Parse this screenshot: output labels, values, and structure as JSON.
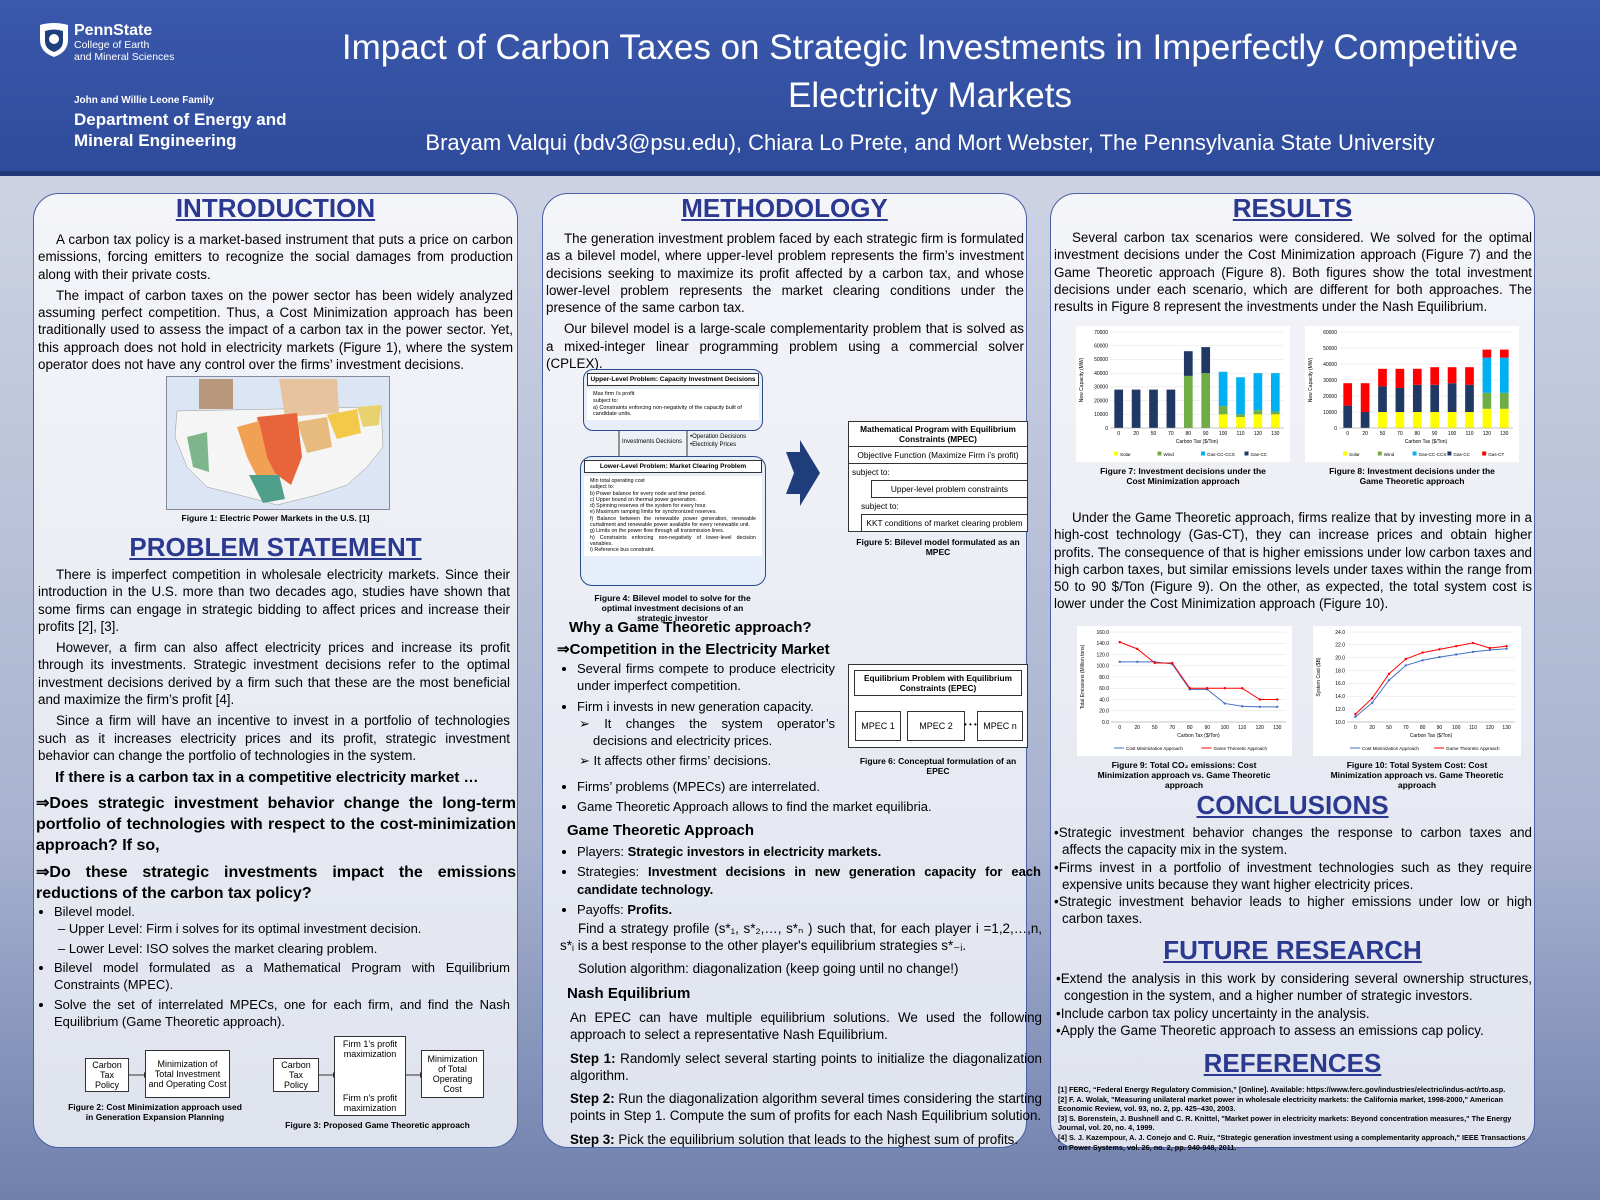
{
  "header": {
    "logo_name": "PennState",
    "logo_line1": "College of Earth",
    "logo_line2": "and Mineral Sciences",
    "dept_family": "John and Willie Leone Family",
    "dept_line1": "Department of Energy and",
    "dept_line2": "Mineral Engineering",
    "title": "Impact of Carbon Taxes on Strategic Investments in Imperfectly Competitive Electricity Markets",
    "authors": "Brayam Valqui (bdv3@psu.edu), Chiara Lo Prete, and Mort Webster, The Pennsylvania State University"
  },
  "introduction": {
    "heading": "INTRODUCTION",
    "paragraphs": [
      "A carbon tax policy is a market-based instrument that puts a price on carbon emissions, forcing emitters to recognize the social damages from production along with their private costs.",
      "The impact of carbon taxes on the power sector has been widely analyzed assuming perfect competition. Thus, a Cost Minimization approach has been traditionally used to assess the impact of a carbon tax in the power sector. Yet, this approach does not hold in electricity markets (Figure 1), where the system operator does not have any control over the firms’ investment decisions."
    ],
    "figure1_caption": "Figure 1: Electric Power Markets in the U.S. [1]"
  },
  "problem_statement": {
    "heading": "PROBLEM STATEMENT",
    "paragraphs": [
      "There is imperfect competition in wholesale electricity markets. Since their introduction in the U.S. more than two decades ago, studies have shown that some firms can engage in strategic bidding to affect prices and increase their profits [2], [3].",
      "However, a firm can also affect electricity prices and increase its profit through its investments. Strategic investment decisions refer to the optimal investment decisions derived by a firm such that these are the most beneficial and maximize the firm’s profit [4].",
      "Since a firm will have an incentive to invest in a portfolio of technologies such as it increases electricity prices and its profit, strategic investment behavior can change the portfolio of technologies in the system."
    ],
    "question_intro": "If there is a carbon tax in a competitive electricity market …",
    "questions": [
      "⇒Does strategic investment behavior change the long-term portfolio of technologies with respect to the cost-minimization approach? If so,",
      "⇒Do these strategic investments impact the emissions reductions of the carbon tax policy?"
    ],
    "bullets": [
      {
        "text": "Bilevel model.",
        "subitems": [
          "Upper Level: Firm i solves for its optimal investment decision.",
          "Lower Level: ISO solves the market clearing problem."
        ]
      },
      {
        "text": "Bilevel model formulated as a Mathematical Program with Equilibrium Constraints (MPEC)."
      },
      {
        "text": "Solve the set of interrelated MPECs, one for each firm, and find the Nash Equilibrium (Game Theoretic approach)."
      }
    ],
    "figure2": {
      "input": "Carbon Tax Policy",
      "model": "Minimization of Total Investment and Operating Cost",
      "caption": "Figure 2: Cost Minimization approach used in Generation Expansion Planning"
    },
    "figure3": {
      "input": "Carbon Tax Policy",
      "firm_first": "Firm 1’s profit maximization",
      "firm_last": "Firm n’s profit maximization",
      "model": "Minimization of Total Operating Cost",
      "caption": "Figure 3: Proposed Game Theoretic approach"
    }
  },
  "methodology": {
    "heading": "METHODOLOGY",
    "paragraphs": [
      "The generation investment problem faced by each strategic firm is formulated as a bilevel model, where upper-level problem represents the firm’s investment decisions seeking to maximize its profit affected by a carbon tax, and whose lower-level problem represents the market clearing conditions under the presence of the same carbon tax.",
      "Our bilevel model is a large-scale complementarity problem that is solved as a mixed-integer linear programming problem using a commercial solver (CPLEX)."
    ],
    "figure4": {
      "upper_title": "Upper-Level Problem: Capacity Investment Decisions",
      "upper_lines": [
        "Max firm i’s profit",
        "subject to:",
        "a) Constraints enforcing non-negativity of the capacity built of candidate units."
      ],
      "down_label": "Investments Decisions",
      "up_labels": [
        "•Operation Decisions",
        "•Electricity Prices"
      ],
      "lower_title": "Lower-Level Problem: Market Clearing Problem",
      "lower_lines": [
        "Min total operating cost",
        "subject to:",
        "b) Power balance for every node and time period.",
        "c) Upper bound on thermal power generation.",
        "d) Spinning reserves of the system for every hour.",
        "e) Maximum ramping limits for synchronized reserves.",
        "f) Balance between the renewable power generation, renewable curtailment and renewable power available for every renewable unit.",
        "g) Limits on the power flow through all transmission lines.",
        "h) Constraints enforcing non-negativity of lower-level decision variables.",
        "i) Reference bus constraint."
      ],
      "caption": "Figure 4: Bilevel model to solve for the optimal investment decisions of an strategic investor"
    },
    "figure5": {
      "title": "Mathematical Program with Equilibrium Constraints (MPEC)",
      "objective": "Objective Function (Maximize Firm i’s profit)",
      "subject_to_1": "subject to:",
      "upper_constraints": "Upper-level problem constraints",
      "subject_to_2": "subject to:",
      "kkt": "KKT conditions of market clearing problem",
      "caption": "Figure 5: Bilevel model formulated as an MPEC"
    },
    "why_heading": "Why a Game Theoretic approach?",
    "competition_heading": "⇒Competition in the Electricity Market",
    "competition_bullets": [
      {
        "text": "Several firms compete to produce electricity under imperfect competition."
      },
      {
        "text": "Firm i invests in new generation capacity.",
        "subitems": [
          "It changes the system operator’s decisions and electricity prices.",
          "It affects other firms’ decisions."
        ]
      },
      {
        "text": "Firms’ problems (MPECs) are interrelated."
      },
      {
        "text": "Game Theoretic Approach allows to find the market equilibria."
      }
    ],
    "figure6": {
      "title": "Equilibrium Problem with Equilibrium Constraints (EPEC)",
      "boxes": [
        "MPEC 1",
        "MPEC 2",
        "MPEC n"
      ],
      "ellipsis": "• • •",
      "caption": "Figure 6: Conceptual formulation of an EPEC"
    },
    "game_heading": "Game Theoretic Approach",
    "game_items": [
      {
        "label": "Players:",
        "value": "Strategic investors in electricity markets."
      },
      {
        "label": "Strategies:",
        "value": "Investment decisions in new generation capacity for each candidate technology."
      },
      {
        "label": "Payoffs:",
        "value": "Profits."
      }
    ],
    "strategy_profile": "Find a strategy profile (s*₁, s*₂,…, s*ₙ ) such that, for each player i =1,2,…,n, s*ᵢ is a best response to the other player's equilibrium strategies s*₋ᵢ.",
    "solution_algorithm": "Solution algorithm: diagonalization (keep going until no change!)",
    "nash_heading": "Nash Equilibrium",
    "nash_intro": "An EPEC can have multiple equilibrium solutions. We used the following approach to select a representative Nash Equilibrium.",
    "steps": [
      {
        "label": "Step 1:",
        "text": "Randomly select several starting points to initialize the diagonalization algorithm."
      },
      {
        "label": "Step 2:",
        "text": "Run the diagonalization algorithm several times considering the starting points in Step 1. Compute the sum of profits for each Nash Equilibrium solution."
      },
      {
        "label": "Step 3:",
        "text": "Pick the equilibrium solution that leads to the highest sum of profits."
      }
    ]
  },
  "results": {
    "heading": "RESULTS",
    "paragraphs": [
      "Several carbon tax scenarios were considered. We solved for the optimal investment decisions under the Cost Minimization approach (Figure 7) and the Game Theoretic approach (Figure 8). Both figures show the total investment decisions under each scenario, which are different for both approaches. The results in Figure 8 represent the investments under the Nash Equilibrium.",
      "Under the Game Theoretic approach, firms realize that by investing more in a high-cost technology (Gas-CT), they can increase prices and obtain higher profits. The consequence of that is higher emissions under low carbon taxes and high carbon taxes, but similar emissions levels under taxes within the range from 50 to 90 $/Ton (Figure 9). On the other, as expected, the total system cost is lower under the Cost Minimization approach (Figure 10)."
    ],
    "figure7": {
      "chart": {
        "type": "bar",
        "ylabel": "New Capacity (MW)",
        "xlabel": "Carbon Tax ($/Ton)",
        "categories": [
          "0",
          "20",
          "50",
          "70",
          "80",
          "90",
          "100",
          "110",
          "120",
          "130"
        ],
        "ylim": [
          0,
          70000
        ],
        "yticks": [
          0,
          10000,
          20000,
          30000,
          40000,
          50000,
          60000,
          70000
        ],
        "series": [
          {
            "name": "Solar",
            "color": "#ffff00",
            "values": [
              0,
              0,
              0,
              0,
              0,
              0,
              10000,
              8000,
              10000,
              10000
            ]
          },
          {
            "name": "Wind",
            "color": "#70ad47",
            "values": [
              0,
              0,
              0,
              0,
              38000,
              40000,
              6000,
              2000,
              3000,
              2000
            ]
          },
          {
            "name": "Gas-CC-CCS",
            "color": "#00b0f0",
            "values": [
              0,
              0,
              0,
              0,
              0,
              0,
              25000,
              27000,
              27000,
              28000
            ]
          },
          {
            "name": "Gas-CC",
            "color": "#1f3864",
            "values": [
              28000,
              28000,
              28000,
              28000,
              18000,
              19000,
              0,
              0,
              0,
              0
            ]
          }
        ]
      },
      "caption": "Figure 7: Investment decisions under the Cost Minimization approach"
    },
    "figure8": {
      "chart": {
        "type": "bar",
        "ylabel": "New Capacity (MW)",
        "xlabel": "Carbon Tax ($/Ton)",
        "categories": [
          "0",
          "20",
          "50",
          "70",
          "80",
          "90",
          "100",
          "110",
          "120",
          "130"
        ],
        "ylim": [
          0,
          60000
        ],
        "yticks": [
          0,
          10000,
          20000,
          30000,
          40000,
          50000,
          60000
        ],
        "series": [
          {
            "name": "Solar",
            "color": "#ffff00",
            "values": [
              0,
              0,
              10000,
              10000,
              10000,
              10000,
              10000,
              10000,
              12000,
              12000
            ]
          },
          {
            "name": "Wind",
            "color": "#70ad47",
            "values": [
              0,
              0,
              0,
              0,
              0,
              0,
              0,
              0,
              10000,
              10000
            ]
          },
          {
            "name": "Gas-CC-CCS",
            "color": "#00b0f0",
            "values": [
              0,
              0,
              0,
              0,
              0,
              0,
              0,
              0,
              22000,
              22000
            ]
          },
          {
            "name": "Gas-CC",
            "color": "#1f3864",
            "values": [
              14000,
              10000,
              16000,
              15000,
              17000,
              17000,
              18000,
              17000,
              0,
              0
            ]
          },
          {
            "name": "Gas-CT",
            "color": "#ff0000",
            "values": [
              14000,
              18000,
              11000,
              12000,
              10000,
              11000,
              10000,
              11000,
              5000,
              5000
            ]
          }
        ]
      },
      "caption": "Figure 8: Investment decisions under the Game Theoretic approach"
    },
    "figure9": {
      "chart": {
        "type": "line",
        "ylabel": "Total Emissions (Million tons)",
        "xlabel": "Carbon Tax ($/Ton)",
        "categories": [
          "0",
          "20",
          "50",
          "70",
          "80",
          "90",
          "100",
          "110",
          "120",
          "130"
        ],
        "ylim": [
          0,
          160
        ],
        "yticks": [
          {
            "value": 0,
            "label": "0.0"
          },
          {
            "value": 20,
            "label": "20.0"
          },
          {
            "value": 40,
            "label": "40.0"
          },
          {
            "value": 60,
            "label": "60.0"
          },
          {
            "value": 80,
            "label": "80.0"
          },
          {
            "value": 100,
            "label": "100.0"
          },
          {
            "value": 120,
            "label": "120.0"
          },
          {
            "value": 140,
            "label": "140.0"
          },
          {
            "value": 160,
            "label": "160.0"
          }
        ],
        "series": [
          {
            "name": "Cost Minimization Approach",
            "color": "#4472c4",
            "values": [
              107,
              107,
              107,
              103,
              58,
              58,
              33,
              28,
              27,
              27
            ]
          },
          {
            "name": "Game Theoretic Approach",
            "color": "#ff0000",
            "values": [
              142,
              130,
              105,
              105,
              60,
              60,
              60,
              60,
              40,
              40
            ]
          }
        ]
      },
      "caption": "Figure 9: Total CO₂ emissions: Cost Minimization approach vs. Game Theoretic approach"
    },
    "figure10": {
      "chart": {
        "type": "line",
        "ylabel": "System Cost ($B)",
        "xlabel": "Carbon Tax ($/Ton)",
        "categories": [
          "0",
          "20",
          "50",
          "70",
          "80",
          "90",
          "100",
          "110",
          "120",
          "130"
        ],
        "ylim": [
          10,
          24
        ],
        "yticks": [
          {
            "value": 10,
            "label": "10.0"
          },
          {
            "value": 12,
            "label": "12.0"
          },
          {
            "value": 14,
            "label": "14.0"
          },
          {
            "value": 16,
            "label": "16.0"
          },
          {
            "value": 18,
            "label": "18.0"
          },
          {
            "value": 20,
            "label": "20.0"
          },
          {
            "value": 22,
            "label": "22.0"
          },
          {
            "value": 24,
            "label": "24.0"
          }
        ],
        "series": [
          {
            "name": "Cost Minimization Approach",
            "color": "#4472c4",
            "values": [
              10.8,
              13.0,
              16.5,
              18.8,
              19.6,
              20.1,
              20.5,
              20.9,
              21.2,
              21.4
            ]
          },
          {
            "name": "Game Theoretic Approach",
            "color": "#ff0000",
            "values": [
              11.2,
              13.7,
              17.5,
              19.8,
              20.8,
              21.3,
              21.8,
              22.3,
              21.5,
              21.8
            ]
          }
        ]
      },
      "caption": "Figure 10: Total System Cost: Cost Minimization approach vs. Game Theoretic approach"
    }
  },
  "conclusions": {
    "heading": "CONCLUSIONS",
    "bullets": [
      "Strategic investment behavior changes the response to carbon taxes and affects the capacity mix in the system.",
      "Firms invest in a portfolio of investment technologies such as they require expensive units because they want higher electricity prices.",
      "Strategic investment behavior leads to higher emissions under low or high carbon taxes."
    ]
  },
  "future_research": {
    "heading": "FUTURE RESEARCH",
    "bullets": [
      "Extend the analysis in this work by considering several ownership structures, congestion in the system, and a higher number of strategic investors.",
      "Include carbon tax policy uncertainty in the analysis.",
      "Apply the Game Theoretic approach to assess an emissions cap policy."
    ]
  },
  "references": {
    "heading": "REFERENCES",
    "items": [
      "[1] FERC, “Federal Energy Regulatory Commision,” [Online]. Available: https://www.ferc.gov/industries/electric/indus-act/rto.asp.",
      "[2] F. A. Wolak, \"Measuring unilateral market power in wholesale electricity markets: the California market, 1998-2000,\" American Economic Review, vol. 93, no. 2, pp. 425–430, 2003.",
      "[3] S. Borenstein, J. Bushnell and C. R. Knittel, \"Market power in electricity markets: Beyond concentration measures,\" The Energy Journal, vol. 20, no. 4, 1999.",
      "[4] S. J. Kazempour, A. J. Conejo and C. Ruiz, \"Strategic generation investment using a complementarity approach,\" IEEE Transactions on Power Systems, vol. 26, no. 2, pp. 940-948, 2011."
    ]
  }
}
